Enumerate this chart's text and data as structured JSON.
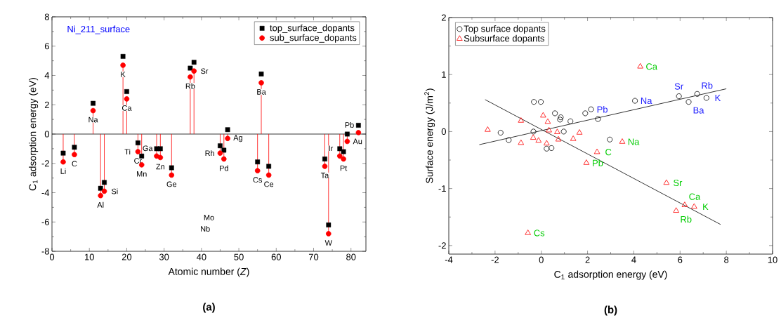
{
  "chart_data": [
    {
      "type": "scatter",
      "title": "Ni_211_surface",
      "xlabel": "Atomic number (*Z*)",
      "ylabel": "C$_{1}$ adsorption energy (eV)",
      "xlim": [
        0,
        84
      ],
      "ylim": [
        -8,
        8
      ],
      "xticks": [
        0,
        10,
        20,
        30,
        40,
        50,
        60,
        70,
        80
      ],
      "yticks": [
        -8,
        -6,
        -4,
        -2,
        0,
        2,
        4,
        6,
        8
      ],
      "legend": "top right",
      "series": [
        {
          "name": "top_surface_dopants",
          "color": "#000000",
          "marker": "square",
          "x": [
            3,
            6,
            11,
            13,
            14,
            19,
            20,
            23,
            24,
            28,
            29,
            32,
            37,
            38,
            45,
            46,
            47,
            55,
            56,
            58,
            73,
            74,
            77,
            78,
            79,
            82
          ],
          "values": [
            -1.3,
            -0.9,
            2.1,
            -3.7,
            -3.3,
            5.3,
            2.9,
            -0.6,
            -1.5,
            -1.0,
            -1.0,
            -2.3,
            4.5,
            4.9,
            -0.8,
            -1.1,
            0.3,
            -1.9,
            4.1,
            -2.2,
            -1.7,
            -6.2,
            -1.0,
            -1.2,
            0.0,
            0.6
          ]
        },
        {
          "name": "sub_surface_dopants",
          "type": "lollipop",
          "color": "#ff0000",
          "marker": "circle",
          "x": [
            3,
            6,
            11,
            13,
            14,
            19,
            20,
            23,
            24,
            28,
            29,
            32,
            37,
            38,
            41,
            42,
            45,
            46,
            47,
            55,
            56,
            58,
            73,
            74,
            77,
            78,
            79,
            82
          ],
          "values": [
            -1.9,
            -1.4,
            1.6,
            -4.2,
            -3.9,
            4.7,
            2.4,
            -1.2,
            -2.1,
            -1.5,
            -1.6,
            -2.8,
            3.9,
            4.3,
            null,
            null,
            -1.3,
            -1.7,
            -0.3,
            -2.5,
            3.5,
            -2.8,
            -2.2,
            -6.8,
            -1.5,
            -1.7,
            -0.5,
            0.1
          ],
          "value_labels": [
            "Li",
            "C",
            "Na",
            "Al",
            "Si",
            "K",
            "Ca",
            "Ti",
            "Mn",
            "Ga",
            "Zn",
            "Ge",
            "Rb",
            "Sr",
            "Nb",
            "Mo",
            "Rh",
            "Pd",
            "Ag",
            "Cs",
            "Ba",
            "Ce",
            "Ta",
            "W",
            "Ir",
            "Pt",
            "Au",
            "Pb"
          ]
        }
      ],
      "ref_lines": [
        {
          "axis": "y",
          "value": 0,
          "color": "#000000"
        }
      ],
      "annotations": [
        {
          "text": "Cr",
          "x": 23,
          "y": -1.2
        },
        "(a)"
      ]
    },
    {
      "type": "scatter",
      "xlabel": "C$_{1}$ adsorption energy (eV)",
      "ylabel": "Surface energy (J/m$^{2}$)",
      "xlim": [
        -4,
        10
      ],
      "ylim": [
        -2.15,
        2
      ],
      "xticks": [
        -4,
        -2,
        0,
        2,
        4,
        6,
        8,
        10
      ],
      "yticks": [
        -2,
        -1,
        0,
        1,
        2
      ],
      "legend": "top left",
      "series": [
        {
          "name": "Top surface dopants",
          "color": "#000000",
          "marker": "circle",
          "x": [
            -1.76,
            -1.41,
            -0.32,
            -0.02,
            -0.34,
            0.23,
            0.44,
            0.59,
            0.84,
            0.81,
            0.97,
            1.26,
            1.9,
            2.15,
            2.45,
            2.96,
            4.05,
            5.95,
            6.37,
            6.74,
            7.14
          ],
          "values": [
            -0.02,
            -0.15,
            0.52,
            0.52,
            0.0,
            -0.3,
            -0.29,
            0.32,
            0.25,
            0.21,
            0.0,
            0.18,
            0.32,
            0.39,
            0.22,
            -0.14,
            0.54,
            0.62,
            0.52,
            0.66,
            0.59
          ],
          "value_labels": [
            null,
            null,
            null,
            null,
            null,
            null,
            null,
            null,
            null,
            null,
            null,
            null,
            null,
            "Pb",
            null,
            null,
            "Na",
            "Sr",
            "Ba",
            "Rb",
            "K"
          ]
        },
        {
          "name": "Subsurface dopants",
          "color": "#ff0000",
          "marker": "triangle",
          "x": [
            -2.32,
            -0.88,
            -0.88,
            -0.35,
            -0.12,
            0.08,
            0.28,
            0.23,
            0.33,
            0.69,
            0.74,
            1.38,
            1.65,
            1.95,
            -0.58,
            2.41,
            3.5,
            5.41,
            5.83,
            6.2,
            6.61,
            4.28
          ],
          "values": [
            0.03,
            0.19,
            -0.2,
            -0.11,
            -0.16,
            0.28,
            0.17,
            -0.21,
            0.02,
            -0.01,
            -0.14,
            -0.13,
            -0.02,
            -0.55,
            -1.78,
            -0.36,
            -0.18,
            -0.9,
            -1.39,
            -1.29,
            -1.32,
            1.14
          ],
          "value_labels": [
            null,
            null,
            null,
            null,
            null,
            null,
            null,
            null,
            null,
            null,
            null,
            null,
            null,
            "Pb",
            "Cs",
            "C",
            "Na",
            "Sr",
            "Rb",
            "Ca",
            "K",
            "Ca"
          ]
        },
        {
          "type": "line",
          "color": "#000000",
          "marker": "none",
          "x": [
            -2.68,
            8.0
          ],
          "values": [
            -0.23,
            0.75
          ]
        },
        {
          "type": "line",
          "color": "#000000",
          "marker": "none",
          "x": [
            -2.43,
            7.75
          ],
          "values": [
            0.56,
            -1.63
          ]
        }
      ],
      "annotations": [
        "(b)"
      ]
    }
  ]
}
